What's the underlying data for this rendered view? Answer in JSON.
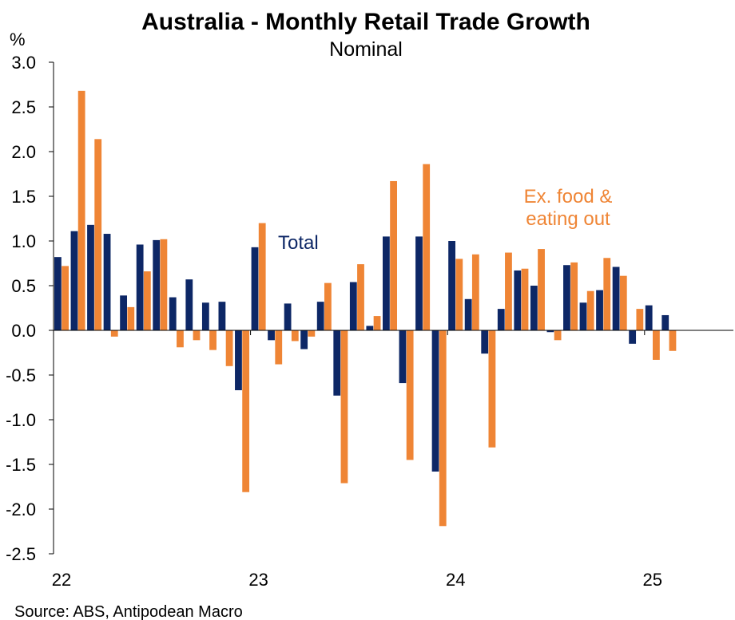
{
  "chart_data": {
    "type": "bar",
    "title": "Australia - Monthly Retail Trade Growth",
    "subtitle": "Nominal",
    "ylabel": "%",
    "ylim": [
      -2.5,
      3.0
    ],
    "yticks": [
      "3.0",
      "2.5",
      "2.0",
      "1.5",
      "1.0",
      "0.5",
      "0.0",
      "-0.5",
      "-1.0",
      "-1.5",
      "-2.0",
      "-2.5"
    ],
    "xtick_labels": [
      "22",
      "23",
      "24",
      "25"
    ],
    "grid": false,
    "source": "Source: ABS, Antipodean Macro",
    "colors": {
      "total": "#0d2766",
      "ex_food": "#ef8535"
    },
    "x": [
      "2022-01",
      "2022-02",
      "2022-03",
      "2022-04",
      "2022-05",
      "2022-06",
      "2022-07",
      "2022-08",
      "2022-09",
      "2022-10",
      "2022-11",
      "2022-12",
      "2023-01",
      "2023-02",
      "2023-03",
      "2023-04",
      "2023-05",
      "2023-06",
      "2023-07",
      "2023-08",
      "2023-09",
      "2023-10",
      "2023-11",
      "2023-12",
      "2024-01",
      "2024-02",
      "2024-03",
      "2024-04",
      "2024-05",
      "2024-06",
      "2024-07",
      "2024-08",
      "2024-09",
      "2024-10",
      "2024-11",
      "2024-12",
      "2025-01",
      "2025-02"
    ],
    "series": [
      {
        "name": "Total",
        "values": [
          0.82,
          1.11,
          1.18,
          1.08,
          0.39,
          0.96,
          1.01,
          0.37,
          0.57,
          0.31,
          0.32,
          -0.67,
          0.93,
          -0.11,
          0.3,
          -0.21,
          0.32,
          -0.73,
          0.54,
          0.05,
          1.05,
          -0.59,
          1.05,
          -1.58,
          1.0,
          0.35,
          -0.26,
          0.24,
          0.67,
          0.5,
          -0.02,
          0.73,
          0.31,
          0.45,
          0.71,
          -0.15,
          0.28,
          0.17
        ]
      },
      {
        "name": "Ex. food & eating out",
        "values": [
          0.72,
          2.68,
          2.14,
          -0.07,
          0.26,
          0.66,
          1.02,
          -0.19,
          -0.11,
          -0.22,
          -0.4,
          -1.81,
          1.2,
          -0.38,
          -0.12,
          -0.07,
          0.53,
          -1.71,
          0.74,
          0.16,
          1.67,
          -1.45,
          1.86,
          -2.19,
          0.8,
          0.85,
          -1.31,
          0.87,
          0.69,
          0.91,
          -0.11,
          0.76,
          0.44,
          0.81,
          0.61,
          0.24,
          -0.33,
          -0.23
        ]
      }
    ],
    "annotations": {
      "total": "Total",
      "ex_food_line1": "Ex. food &",
      "ex_food_line2": "eating out"
    }
  }
}
